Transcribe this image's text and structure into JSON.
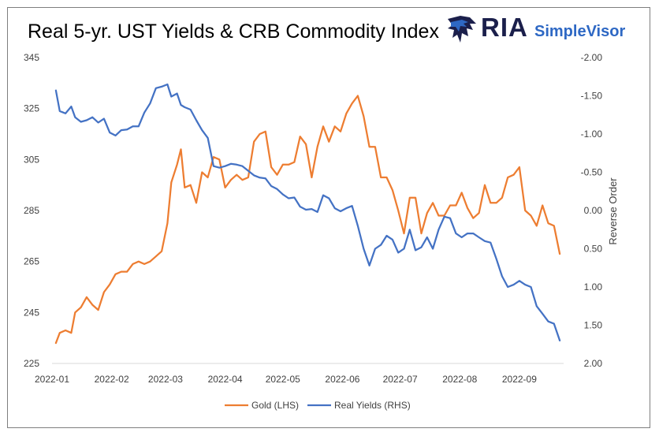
{
  "chart_data": {
    "type": "line",
    "title": "Real 5-yr. UST Yields & CRB Commodity Index",
    "xlabel": "",
    "ylabel": "",
    "y2label": "Reverse Order",
    "y_left_ticks": [
      "345",
      "325",
      "305",
      "285",
      "265",
      "245",
      "225"
    ],
    "y_left_range": [
      225,
      345
    ],
    "y_right_ticks": [
      "-2.00",
      "-1.50",
      "-1.00",
      "-0.50",
      "0.00",
      "0.50",
      "1.00",
      "1.50",
      "2.00"
    ],
    "y_right_range": [
      -2.0,
      2.0
    ],
    "y_right_reversed": true,
    "x_ticks": [
      "2022-01",
      "2022-02",
      "2022-03",
      "2022-04",
      "2022-05",
      "2022-06",
      "2022-07",
      "2022-08",
      "2022-09"
    ],
    "grid": false,
    "legend_position": "bottom",
    "series": [
      {
        "name": "Gold (LHS)",
        "axis": "left",
        "color": "#ED7D31",
        "x": [
          "2022-01-03",
          "2022-01-05",
          "2022-01-08",
          "2022-01-11",
          "2022-01-13",
          "2022-01-16",
          "2022-01-19",
          "2022-01-22",
          "2022-01-25",
          "2022-01-28",
          "2022-01-31",
          "2022-02-03",
          "2022-02-06",
          "2022-02-09",
          "2022-02-12",
          "2022-02-15",
          "2022-02-18",
          "2022-02-21",
          "2022-02-24",
          "2022-02-27",
          "2022-03-02",
          "2022-03-04",
          "2022-03-07",
          "2022-03-09",
          "2022-03-11",
          "2022-03-14",
          "2022-03-17",
          "2022-03-20",
          "2022-03-23",
          "2022-03-26",
          "2022-03-29",
          "2022-04-01",
          "2022-04-04",
          "2022-04-07",
          "2022-04-10",
          "2022-04-13",
          "2022-04-16",
          "2022-04-19",
          "2022-04-22",
          "2022-04-25",
          "2022-04-28",
          "2022-05-01",
          "2022-05-04",
          "2022-05-07",
          "2022-05-10",
          "2022-05-13",
          "2022-05-16",
          "2022-05-19",
          "2022-05-22",
          "2022-05-25",
          "2022-05-28",
          "2022-05-31",
          "2022-06-03",
          "2022-06-06",
          "2022-06-09",
          "2022-06-12",
          "2022-06-15",
          "2022-06-18",
          "2022-06-21",
          "2022-06-24",
          "2022-06-27",
          "2022-06-30",
          "2022-07-03",
          "2022-07-06",
          "2022-07-09",
          "2022-07-12",
          "2022-07-15",
          "2022-07-18",
          "2022-07-21",
          "2022-07-24",
          "2022-07-27",
          "2022-07-30",
          "2022-08-02",
          "2022-08-05",
          "2022-08-08",
          "2022-08-11",
          "2022-08-14",
          "2022-08-17",
          "2022-08-20",
          "2022-08-23",
          "2022-08-26",
          "2022-08-29",
          "2022-09-01",
          "2022-09-04",
          "2022-09-07",
          "2022-09-10",
          "2022-09-13",
          "2022-09-16",
          "2022-09-19",
          "2022-09-22"
        ],
        "values": [
          233,
          237,
          238,
          237,
          245,
          247,
          251,
          248,
          246,
          253,
          256,
          260,
          261,
          261,
          264,
          265,
          264,
          265,
          267,
          269,
          280,
          296,
          303,
          309,
          294,
          295,
          288,
          300,
          298,
          306,
          305,
          294,
          297,
          299,
          297,
          298,
          312,
          315,
          316,
          302,
          299,
          303,
          303,
          304,
          314,
          311,
          298,
          310,
          318,
          312,
          318,
          316,
          323,
          327,
          330,
          322,
          310,
          310,
          298,
          298,
          293,
          285,
          276,
          290,
          290,
          276,
          284,
          288,
          283,
          283,
          287,
          287,
          292,
          286,
          282,
          284,
          295,
          288,
          288,
          290,
          298,
          299,
          302,
          285,
          283,
          279,
          287,
          280,
          279,
          268
        ]
      },
      {
        "name": "Real Yields (RHS)",
        "axis": "right",
        "color": "#4472C4",
        "x": [
          "2022-01-03",
          "2022-01-05",
          "2022-01-08",
          "2022-01-11",
          "2022-01-13",
          "2022-01-16",
          "2022-01-19",
          "2022-01-22",
          "2022-01-25",
          "2022-01-28",
          "2022-01-31",
          "2022-02-03",
          "2022-02-06",
          "2022-02-09",
          "2022-02-12",
          "2022-02-15",
          "2022-02-18",
          "2022-02-21",
          "2022-02-24",
          "2022-02-27",
          "2022-03-02",
          "2022-03-04",
          "2022-03-07",
          "2022-03-09",
          "2022-03-11",
          "2022-03-14",
          "2022-03-17",
          "2022-03-20",
          "2022-03-23",
          "2022-03-26",
          "2022-03-29",
          "2022-04-01",
          "2022-04-04",
          "2022-04-07",
          "2022-04-10",
          "2022-04-13",
          "2022-04-16",
          "2022-04-19",
          "2022-04-22",
          "2022-04-25",
          "2022-04-28",
          "2022-05-01",
          "2022-05-04",
          "2022-05-07",
          "2022-05-10",
          "2022-05-13",
          "2022-05-16",
          "2022-05-19",
          "2022-05-22",
          "2022-05-25",
          "2022-05-28",
          "2022-05-31",
          "2022-06-03",
          "2022-06-06",
          "2022-06-09",
          "2022-06-12",
          "2022-06-15",
          "2022-06-18",
          "2022-06-21",
          "2022-06-24",
          "2022-06-27",
          "2022-06-30",
          "2022-07-03",
          "2022-07-06",
          "2022-07-09",
          "2022-07-12",
          "2022-07-15",
          "2022-07-18",
          "2022-07-21",
          "2022-07-24",
          "2022-07-27",
          "2022-07-30",
          "2022-08-02",
          "2022-08-05",
          "2022-08-08",
          "2022-08-11",
          "2022-08-14",
          "2022-08-17",
          "2022-08-20",
          "2022-08-23",
          "2022-08-26",
          "2022-08-29",
          "2022-09-01",
          "2022-09-04",
          "2022-09-07",
          "2022-09-10",
          "2022-09-13",
          "2022-09-16",
          "2022-09-19",
          "2022-09-22"
        ],
        "values": [
          -1.57,
          -1.3,
          -1.27,
          -1.36,
          -1.22,
          -1.16,
          -1.18,
          -1.22,
          -1.15,
          -1.2,
          -1.02,
          -0.98,
          -1.05,
          -1.06,
          -1.1,
          -1.1,
          -1.28,
          -1.4,
          -1.6,
          -1.62,
          -1.65,
          -1.49,
          -1.53,
          -1.38,
          -1.35,
          -1.32,
          -1.18,
          -1.05,
          -0.95,
          -0.58,
          -0.56,
          -0.58,
          -0.61,
          -0.6,
          -0.58,
          -0.52,
          -0.46,
          -0.43,
          -0.42,
          -0.32,
          -0.28,
          -0.21,
          -0.16,
          -0.17,
          -0.05,
          -0.01,
          -0.02,
          0.02,
          -0.2,
          -0.16,
          -0.03,
          0.01,
          -0.03,
          -0.06,
          0.2,
          0.5,
          0.72,
          0.5,
          0.45,
          0.33,
          0.38,
          0.55,
          0.5,
          0.25,
          0.52,
          0.48,
          0.35,
          0.5,
          0.25,
          0.08,
          0.1,
          0.3,
          0.35,
          0.3,
          0.3,
          0.35,
          0.4,
          0.42,
          0.63,
          0.86,
          1.0,
          0.97,
          0.92,
          0.97,
          1.0,
          1.25,
          1.35,
          1.45,
          1.48,
          1.7
        ]
      }
    ]
  }
}
